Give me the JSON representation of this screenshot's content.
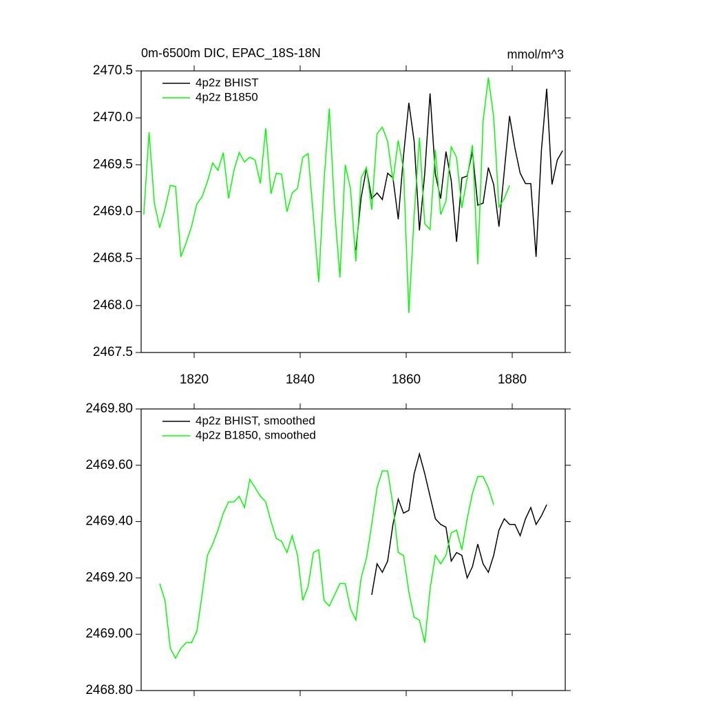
{
  "chart_data": [
    {
      "type": "line",
      "title": "0m-6500m DIC, EPAC_18S-18N",
      "units": "mmol/m^3",
      "xlim": [
        1810,
        1890
      ],
      "xticks": [
        1820,
        1840,
        1860,
        1880
      ],
      "ylim": [
        2467.5,
        2470.5
      ],
      "yticks": [
        2467.5,
        {
          "value": 2468,
          "label": "2468.0"
        },
        2468.5,
        {
          "value": 2469,
          "label": "2469.0"
        },
        2469.5,
        {
          "value": 2470,
          "label": "2470.0"
        },
        2470.5
      ],
      "legend": "upper left",
      "series": [
        {
          "name": "4p2z BHIST",
          "color": "#000000",
          "x": [
            1850.5,
            1851.5,
            1852.5,
            1853.5,
            1854.5,
            1855.5,
            1856.5,
            1857.5,
            1858.5,
            1859.5,
            1860.5,
            1861.5,
            1862.5,
            1863.5,
            1864.5,
            1865.5,
            1866.5,
            1867.5,
            1868.5,
            1869.5,
            1870.5,
            1871.5,
            1872.5,
            1873.5,
            1874.5,
            1875.5,
            1876.5,
            1877.5,
            1878.5,
            1879.5,
            1880.5,
            1881.5,
            1882.5,
            1883.5,
            1884.5,
            1885.5,
            1886.5,
            1887.5,
            1888.5,
            1889.5
          ],
          "values": [
            2468.59,
            2469.15,
            2469.46,
            2469.14,
            2469.2,
            2469.13,
            2469.41,
            2469.36,
            2468.92,
            2469.6,
            2470.16,
            2469.75,
            2468.8,
            2469.41,
            2470.26,
            2469.4,
            2469.14,
            2469.64,
            2469.33,
            2468.68,
            2469.36,
            2469.38,
            2469.64,
            2469.07,
            2469.09,
            2469.47,
            2469.29,
            2468.84,
            2469.43,
            2470.02,
            2469.68,
            2469.41,
            2469.3,
            2469.3,
            2468.52,
            2469.65,
            2470.31,
            2469.29,
            2469.55,
            2469.65
          ]
        },
        {
          "name": "4p2z B1850",
          "color": "#00ff00",
          "x": [
            1810.5,
            1811.5,
            1812.5,
            1813.5,
            1814.5,
            1815.5,
            1816.5,
            1817.5,
            1818.5,
            1819.5,
            1820.5,
            1821.5,
            1822.5,
            1823.5,
            1824.5,
            1825.5,
            1826.5,
            1827.5,
            1828.5,
            1829.5,
            1830.5,
            1831.5,
            1832.5,
            1833.5,
            1834.5,
            1835.5,
            1836.5,
            1837.5,
            1838.5,
            1839.5,
            1840.5,
            1841.5,
            1842.5,
            1843.5,
            1844.5,
            1845.5,
            1846.5,
            1847.5,
            1848.5,
            1849.5,
            1850.5,
            1851.5,
            1852.5,
            1853.5,
            1854.5,
            1855.5,
            1856.5,
            1857.5,
            1858.5,
            1859.5,
            1860.5,
            1861.5,
            1862.5,
            1863.5,
            1864.5,
            1865.5,
            1866.5,
            1867.5,
            1868.5,
            1869.5,
            1870.5,
            1871.5,
            1872.5,
            1873.5,
            1874.5,
            1875.5,
            1876.5,
            1877.5,
            1878.5,
            1879.5
          ],
          "values": [
            2468.97,
            2469.85,
            2469.09,
            2468.83,
            2469.03,
            2469.28,
            2469.27,
            2468.52,
            2468.67,
            2468.84,
            2469.08,
            2469.16,
            2469.32,
            2469.52,
            2469.44,
            2469.63,
            2469.14,
            2469.44,
            2469.63,
            2469.53,
            2469.58,
            2469.55,
            2469.3,
            2469.89,
            2469.19,
            2469.41,
            2469.4,
            2469.0,
            2469.2,
            2469.25,
            2469.58,
            2469.62,
            2468.94,
            2468.25,
            2469.33,
            2470.1,
            2469.02,
            2468.3,
            2469.5,
            2469.24,
            2468.47,
            2469.36,
            2469.47,
            2469.02,
            2469.83,
            2469.9,
            2469.75,
            2469.33,
            2469.76,
            2469.45,
            2467.92,
            2468.96,
            2469.79,
            2468.87,
            2468.81,
            2469.66,
            2468.97,
            2469.11,
            2469.69,
            2469.58,
            2469.04,
            2469.36,
            2469.71,
            2468.44,
            2469.96,
            2470.43,
            2470.01,
            2469.05,
            2469.14,
            2469.28
          ]
        }
      ]
    },
    {
      "type": "line",
      "xlim": [
        1810,
        1890
      ],
      "xticks": [
        1820,
        1840,
        1860,
        1880
      ],
      "ylim": [
        2468.8,
        2469.8
      ],
      "yticks": [
        {
          "value": 2468.8,
          "label": "2468.80"
        },
        {
          "value": 2469,
          "label": "2469.00"
        },
        {
          "value": 2469.2,
          "label": "2469.20"
        },
        {
          "value": 2469.4,
          "label": "2469.40"
        },
        {
          "value": 2469.6,
          "label": "2469.60"
        },
        {
          "value": 2469.8,
          "label": "2469.80"
        }
      ],
      "legend": "upper left",
      "series": [
        {
          "name": "4p2z BHIST, smoothed",
          "color": "#000000",
          "x": [
            1853.5,
            1854.5,
            1855.5,
            1856.5,
            1857.5,
            1858.5,
            1859.5,
            1860.5,
            1861.5,
            1862.5,
            1863.5,
            1864.5,
            1865.5,
            1866.5,
            1867.5,
            1868.5,
            1869.5,
            1870.5,
            1871.5,
            1872.5,
            1873.5,
            1874.5,
            1875.5,
            1876.5,
            1877.5,
            1878.5,
            1879.5,
            1880.5,
            1881.5,
            1882.5,
            1883.5,
            1884.5,
            1885.5,
            1886.5
          ],
          "values": [
            2469.14,
            2469.25,
            2469.22,
            2469.26,
            2469.39,
            2469.48,
            2469.43,
            2469.44,
            2469.57,
            2469.64,
            2469.57,
            2469.49,
            2469.41,
            2469.39,
            2469.38,
            2469.26,
            2469.29,
            2469.28,
            2469.2,
            2469.24,
            2469.32,
            2469.25,
            2469.22,
            2469.28,
            2469.37,
            2469.41,
            2469.39,
            2469.39,
            2469.35,
            2469.41,
            2469.45,
            2469.39,
            2469.42,
            2469.46
          ]
        },
        {
          "name": "4p2z B1850, smoothed",
          "color": "#00ff00",
          "x": [
            1813.5,
            1814.5,
            1815.5,
            1816.5,
            1817.5,
            1818.5,
            1819.5,
            1820.5,
            1821.5,
            1822.5,
            1823.5,
            1824.5,
            1825.5,
            1826.5,
            1827.5,
            1828.5,
            1829.5,
            1830.5,
            1831.5,
            1832.5,
            1833.5,
            1834.5,
            1835.5,
            1836.5,
            1837.5,
            1838.5,
            1839.5,
            1840.5,
            1841.5,
            1842.5,
            1843.5,
            1844.5,
            1845.5,
            1846.5,
            1847.5,
            1848.5,
            1849.5,
            1850.5,
            1851.5,
            1852.5,
            1853.5,
            1854.5,
            1855.5,
            1856.5,
            1857.5,
            1858.5,
            1859.5,
            1860.5,
            1861.5,
            1862.5,
            1863.5,
            1864.5,
            1865.5,
            1866.5,
            1867.5,
            1868.5,
            1869.5,
            1870.5,
            1871.5,
            1872.5,
            1873.5,
            1874.5,
            1875.5,
            1876.5
          ],
          "values": [
            2469.18,
            2469.12,
            2468.95,
            2468.915,
            2468.95,
            2468.97,
            2468.97,
            2469.01,
            2469.14,
            2469.28,
            2469.32,
            2469.37,
            2469.43,
            2469.47,
            2469.47,
            2469.49,
            2469.45,
            2469.55,
            2469.52,
            2469.49,
            2469.47,
            2469.4,
            2469.34,
            2469.33,
            2469.29,
            2469.35,
            2469.28,
            2469.12,
            2469.17,
            2469.29,
            2469.3,
            2469.12,
            2469.1,
            2469.14,
            2469.18,
            2469.18,
            2469.09,
            2469.05,
            2469.2,
            2469.27,
            2469.39,
            2469.52,
            2469.58,
            2469.58,
            2469.46,
            2469.29,
            2469.28,
            2469.15,
            2469.06,
            2469.05,
            2468.97,
            2469.16,
            2469.28,
            2469.25,
            2469.28,
            2469.36,
            2469.37,
            2469.3,
            2469.41,
            2469.5,
            2469.56,
            2469.56,
            2469.52,
            2469.46
          ]
        }
      ]
    }
  ]
}
